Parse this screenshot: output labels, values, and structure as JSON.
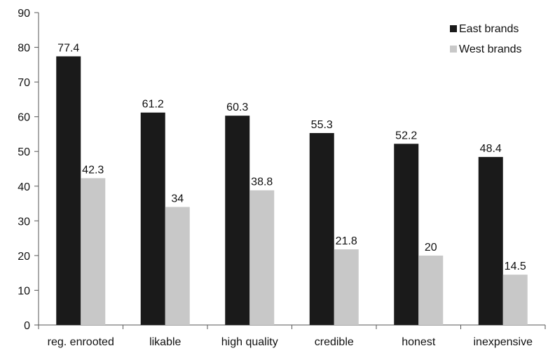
{
  "chart_data": {
    "type": "bar",
    "categories": [
      "reg. enrooted",
      "likable",
      "high quality",
      "credible",
      "honest",
      "inexpensive"
    ],
    "series": [
      {
        "name": "East brands",
        "values": [
          77.4,
          61.2,
          60.3,
          55.3,
          52.2,
          48.4
        ],
        "labels": [
          "77.4",
          "61.2",
          "60.3",
          "55.3",
          "52.2",
          "48.4"
        ],
        "color": "#1a1a1a"
      },
      {
        "name": "West brands",
        "values": [
          42.3,
          34,
          38.8,
          21.8,
          20,
          14.5
        ],
        "labels": [
          "42.3",
          "34",
          "38.8",
          "21.8",
          "20",
          "14.5"
        ],
        "color": "#c8c8c8"
      }
    ],
    "title": "",
    "xlabel": "",
    "ylabel": "",
    "ylim": [
      0,
      90
    ],
    "yticks": [
      0,
      10,
      20,
      30,
      40,
      50,
      60,
      70,
      80,
      90
    ],
    "ytick_labels": [
      "0",
      "10",
      "20",
      "30",
      "40",
      "50",
      "60",
      "70",
      "80",
      "90"
    ],
    "grid": false,
    "legend_position": "top-right"
  }
}
